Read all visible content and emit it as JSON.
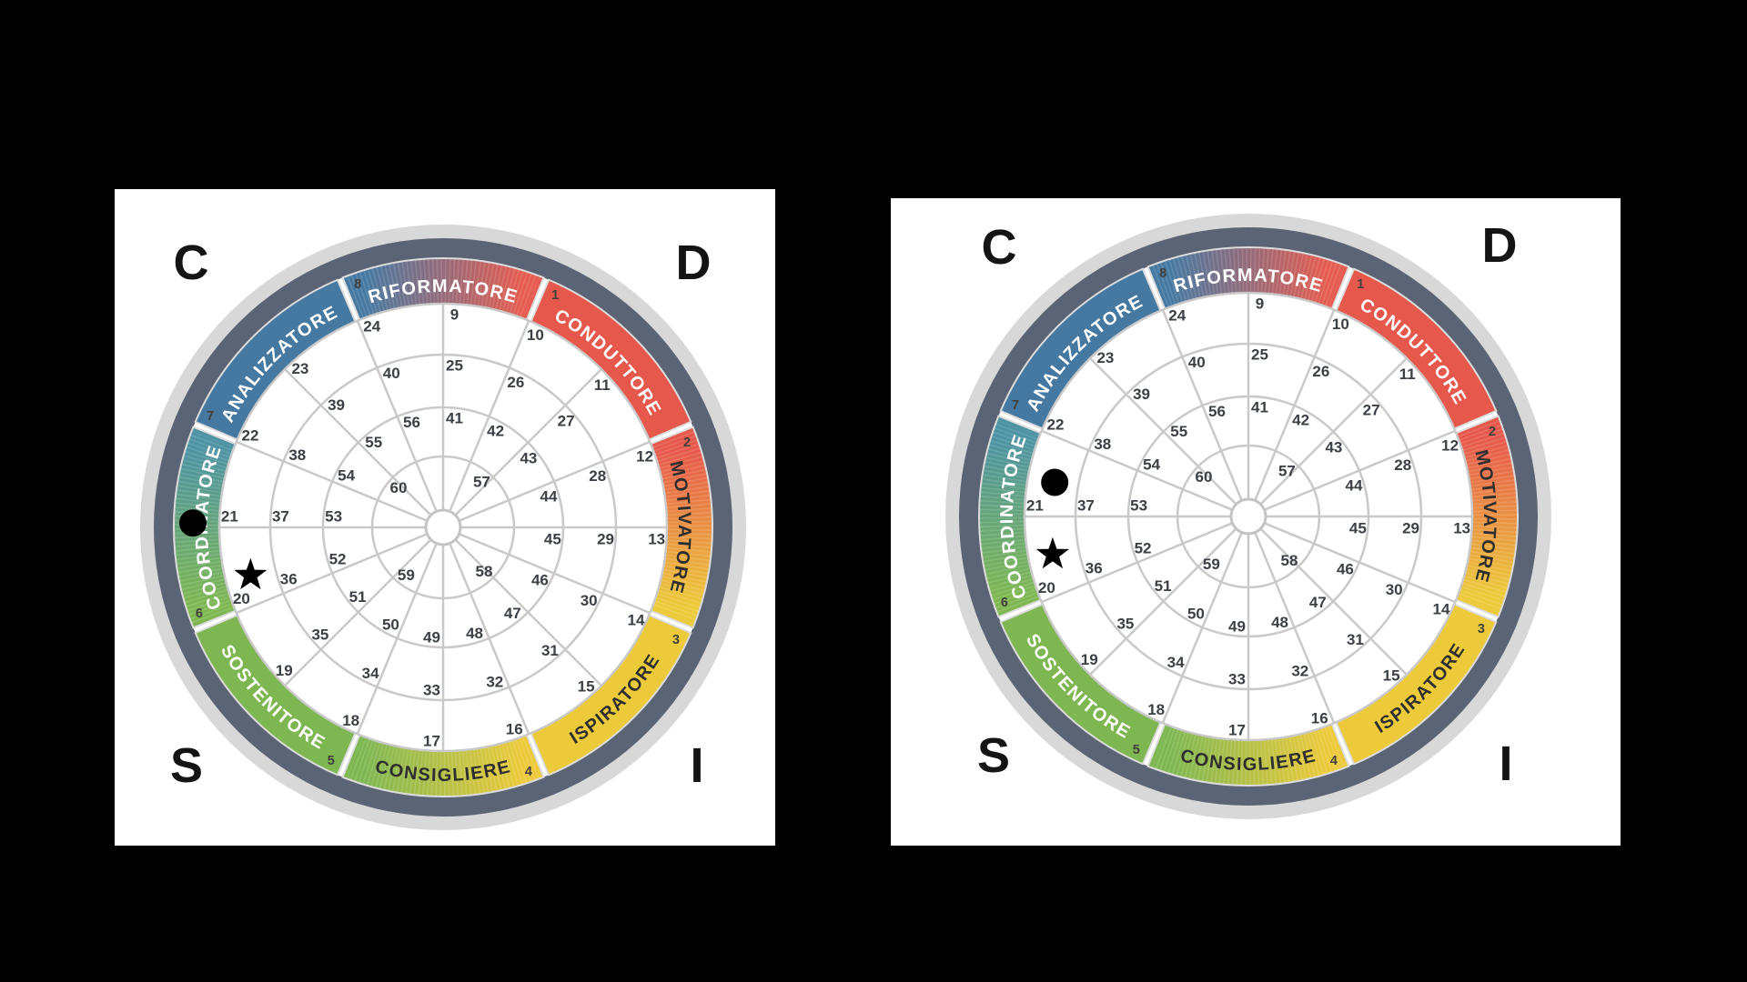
{
  "page": {
    "background": "#000000"
  },
  "palette": {
    "panel_bg": "#ffffff",
    "outer_ring_silver": "#d8d8d8",
    "outer_ring_slate": "#5b6474",
    "grid_line": "#c9c9c9",
    "center_circle_line": "#c4c4c4",
    "number_text": "#3b4046",
    "segment_number_text": "#433f3a",
    "corner_letter": "#141414",
    "marker": "#000000",
    "segment_gap": "#dcdcdc"
  },
  "chart_data": {
    "type": "disc-wheel-pair",
    "corner_letters": {
      "top_left": "C",
      "top_right": "D",
      "bottom_left": "S",
      "bottom_right": "I"
    },
    "segments": [
      {
        "number": 8,
        "label": "RIFORMATORE",
        "start_deg": 337.5,
        "end_deg": 382.5,
        "colors": [
          "#4579a1",
          "#e65c50"
        ],
        "label_color": "#ffffff",
        "flip": false,
        "hatched": true
      },
      {
        "number": 1,
        "label": "CONDUTTORE",
        "start_deg": 22.5,
        "end_deg": 67.5,
        "colors": [
          "#e7584c"
        ],
        "label_color": "#ffffff",
        "flip": false,
        "hatched": false
      },
      {
        "number": 2,
        "label": "MOTIVATORE",
        "start_deg": 67.5,
        "end_deg": 112.5,
        "colors": [
          "#e7584c",
          "#ecca3a"
        ],
        "label_color": "#2e2e2e",
        "flip": false,
        "hatched": true
      },
      {
        "number": 3,
        "label": "ISPIRATORE",
        "start_deg": 112.5,
        "end_deg": 157.5,
        "colors": [
          "#ecca3a"
        ],
        "label_color": "#2e2e2e",
        "flip": true,
        "hatched": false
      },
      {
        "number": 4,
        "label": "CONSIGLIERE",
        "start_deg": 157.5,
        "end_deg": 202.5,
        "colors": [
          "#ecca3a",
          "#7eb752"
        ],
        "label_color": "#2e2e2e",
        "flip": true,
        "hatched": true
      },
      {
        "number": 5,
        "label": "SOSTENITORE",
        "start_deg": 202.5,
        "end_deg": 247.5,
        "colors": [
          "#7eb752"
        ],
        "label_color": "#ffffff",
        "flip": true,
        "hatched": false
      },
      {
        "number": 6,
        "label": "COORDINATORE",
        "start_deg": 247.5,
        "end_deg": 292.5,
        "colors": [
          "#7eb752",
          "#4d93a3"
        ],
        "label_color": "#ffffff",
        "flip": false,
        "hatched": true
      },
      {
        "number": 7,
        "label": "ANALIZZATORE",
        "start_deg": 292.5,
        "end_deg": 337.5,
        "colors": [
          "#4579a1"
        ],
        "label_color": "#ffffff",
        "flip": false,
        "hatched": false
      }
    ],
    "rings": [
      {
        "numbers": [
          9,
          10,
          11,
          12,
          13,
          14,
          15,
          16,
          17,
          18,
          19,
          20,
          21,
          22,
          23,
          24
        ]
      },
      {
        "numbers": [
          25,
          26,
          27,
          28,
          29,
          30,
          31,
          32,
          33,
          34,
          35,
          36,
          37,
          38,
          39,
          40
        ]
      },
      {
        "numbers": [
          41,
          42,
          43,
          44,
          45,
          46,
          47,
          48,
          49,
          50,
          51,
          52,
          53,
          54,
          55,
          56
        ]
      },
      {
        "numbers": [
          57,
          58,
          59,
          60
        ],
        "number_angles": [
          40,
          137,
          218,
          312
        ]
      }
    ],
    "wheels": [
      {
        "name": "disc-wheel-left",
        "markers": [
          {
            "shape": "dot",
            "on": "segment-band-coordinatore",
            "angle_deg": 271,
            "radius_frac": 0.826
          },
          {
            "shape": "star",
            "on": "outer-ring-cell-20",
            "angle_deg": 256,
            "radius_frac": 0.655
          }
        ]
      },
      {
        "name": "disc-wheel-right",
        "markers": [
          {
            "shape": "dot",
            "on": "outer-ring-cell-21",
            "angle_deg": 280,
            "radius_frac": 0.649
          },
          {
            "shape": "star",
            "on": "outer-ring-cell-20",
            "angle_deg": 259,
            "radius_frac": 0.658
          }
        ]
      }
    ]
  }
}
